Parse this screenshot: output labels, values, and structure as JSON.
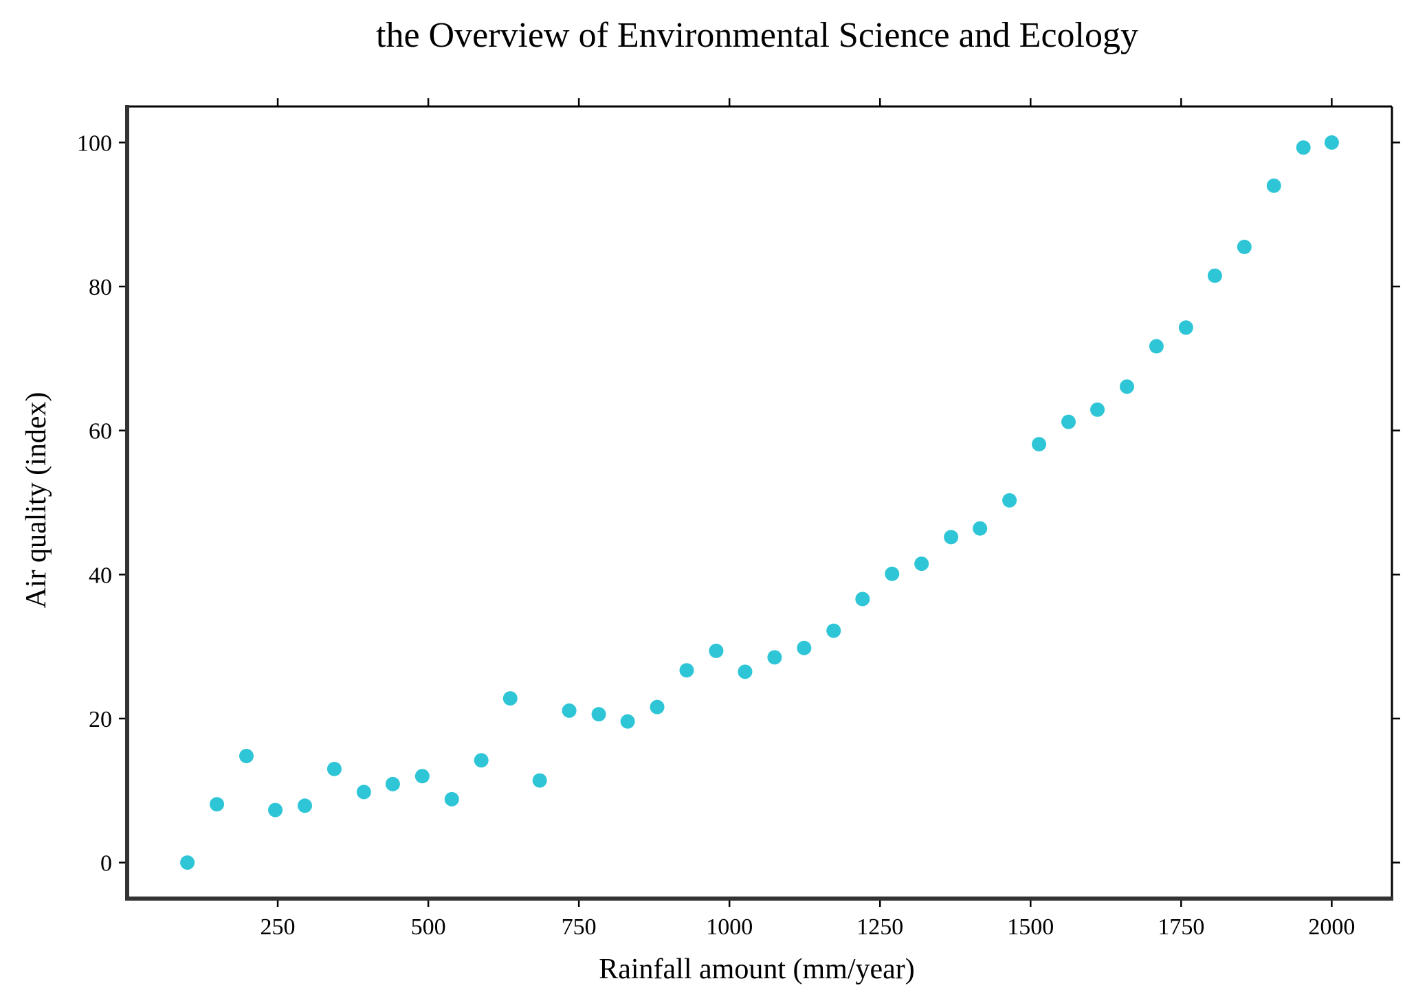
{
  "chart_data": {
    "type": "scatter",
    "title": "the Overview of Environmental Science and Ecology",
    "xlabel": "Rainfall amount (mm/year)",
    "ylabel": "Air quality (index)",
    "xlim": [
      0,
      2100
    ],
    "ylim": [
      -5,
      105
    ],
    "xticks": [
      250,
      500,
      750,
      1000,
      1250,
      1500,
      1750,
      2000
    ],
    "yticks": [
      0,
      20,
      40,
      60,
      80,
      100
    ],
    "grid": false,
    "marker_color": "#2ec6d6",
    "axes_color": "#333333",
    "series": [
      {
        "x": [
          100,
          149,
          198,
          246,
          295,
          344,
          393,
          441,
          490,
          539,
          588,
          636,
          685,
          734,
          783,
          831,
          880,
          929,
          978,
          1026,
          1075,
          1124,
          1173,
          1221,
          1270,
          1319,
          1368,
          1416,
          1465,
          1514,
          1563,
          1611,
          1660,
          1709,
          1758,
          1806,
          1855,
          1904,
          1953,
          2000
        ],
        "y": [
          0.0,
          8.1,
          14.8,
          7.3,
          7.9,
          13.0,
          9.8,
          10.9,
          12.0,
          8.8,
          14.2,
          22.8,
          11.4,
          21.1,
          20.6,
          19.6,
          21.6,
          26.7,
          29.4,
          26.5,
          28.5,
          29.8,
          32.2,
          36.6,
          40.1,
          41.5,
          45.2,
          46.4,
          50.3,
          58.1,
          61.2,
          62.9,
          66.1,
          71.7,
          74.3,
          81.5,
          85.5,
          94.0,
          99.3,
          100.0
        ]
      }
    ]
  }
}
